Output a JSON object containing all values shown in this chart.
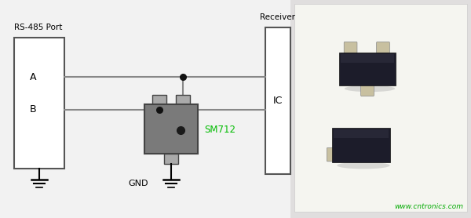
{
  "bg_color": "#f2f2f2",
  "rs485_label": "RS-485 Port",
  "receiver_label": "Receiver",
  "ic_label": "IC",
  "a_label": "A",
  "b_label": "B",
  "gnd_label": "GND",
  "sm712_label": "SM712",
  "sm712_color": "#00bb00",
  "line_color": "#888888",
  "box_border_color": "#555555",
  "component_body_color": "#7a7a7a",
  "dot_color": "#111111",
  "watermark": "www.cntronics.com",
  "watermark_color": "#00aa00",
  "photo_bg": "#e8e8e8",
  "photo_border": "#cccccc"
}
